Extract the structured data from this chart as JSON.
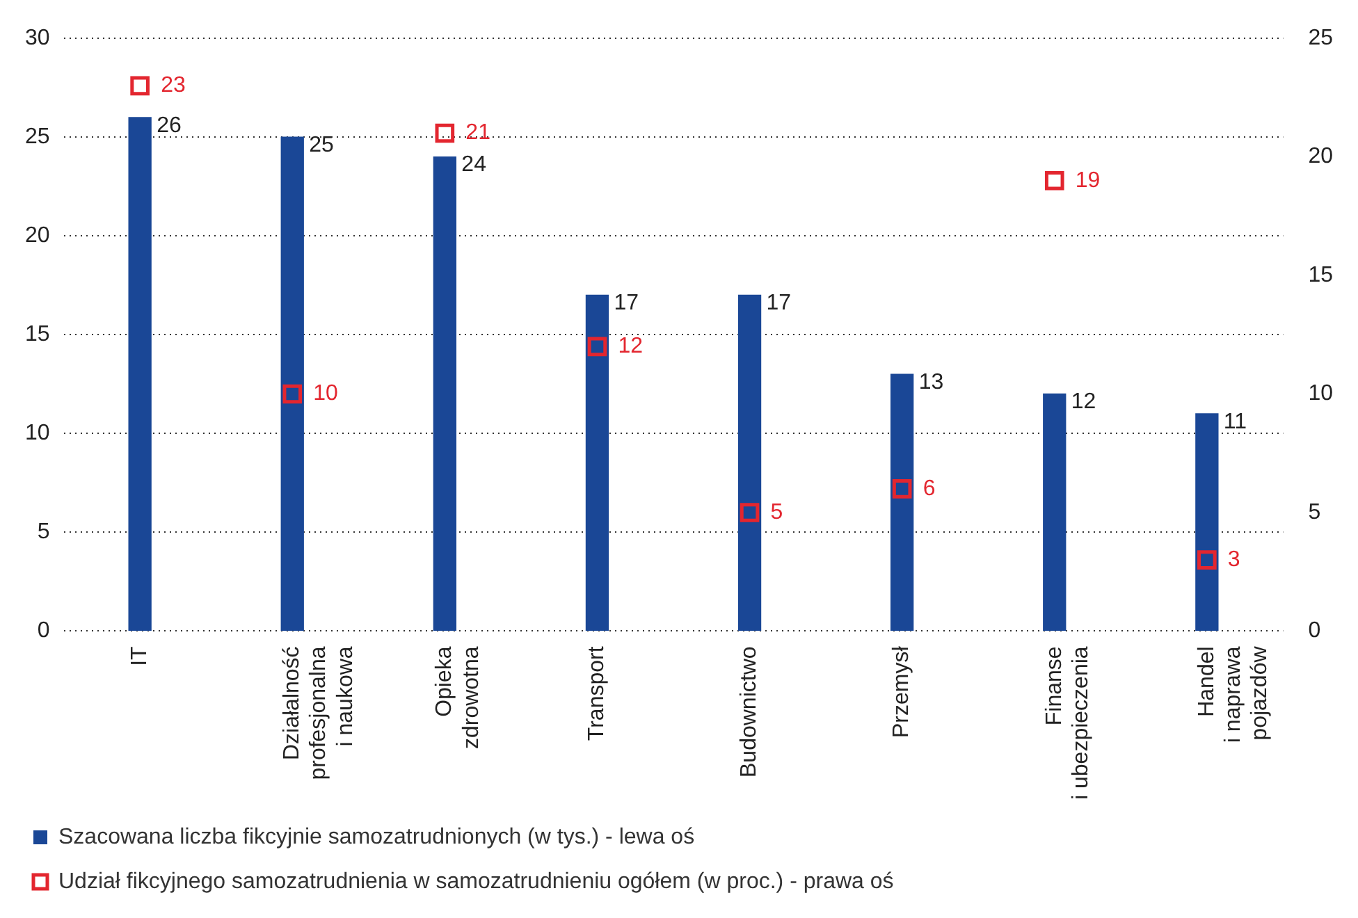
{
  "chart_data": {
    "type": "bar",
    "categories": [
      "IT",
      "Działalność\nprofesjonalna\ni naukowa",
      "Opieka\nzdrowotna",
      "Transport",
      "Budownictwo",
      "Przemysł",
      "Finanse\ni ubezpieczenia",
      "Handel\ni naprawa\npojazdów"
    ],
    "series": [
      {
        "name": "Szacowana liczba fikcyjnie samozatrudnionych (w tys.) - lewa oś",
        "color": "#1a4796",
        "values": [
          26,
          25,
          24,
          17,
          17,
          13,
          12,
          11
        ]
      },
      {
        "name": "Udział fikcyjnego samozatrudnienia w samozatrudnieniu ogółem (w proc.) - prawa oś",
        "type": "scatter",
        "axis": "y2",
        "marker": "square",
        "color": "#e3262f",
        "values": [
          23,
          10,
          21,
          12,
          5,
          6,
          19,
          3
        ]
      }
    ],
    "ylim": [
      0,
      30
    ],
    "yticks": [
      0,
      5,
      10,
      15,
      20,
      25,
      30
    ],
    "y2lim": [
      0,
      25
    ],
    "y2ticks": [
      0,
      5,
      10,
      15,
      20,
      25
    ],
    "grid": "y",
    "legend": "bottom left",
    "data_labels": true
  }
}
